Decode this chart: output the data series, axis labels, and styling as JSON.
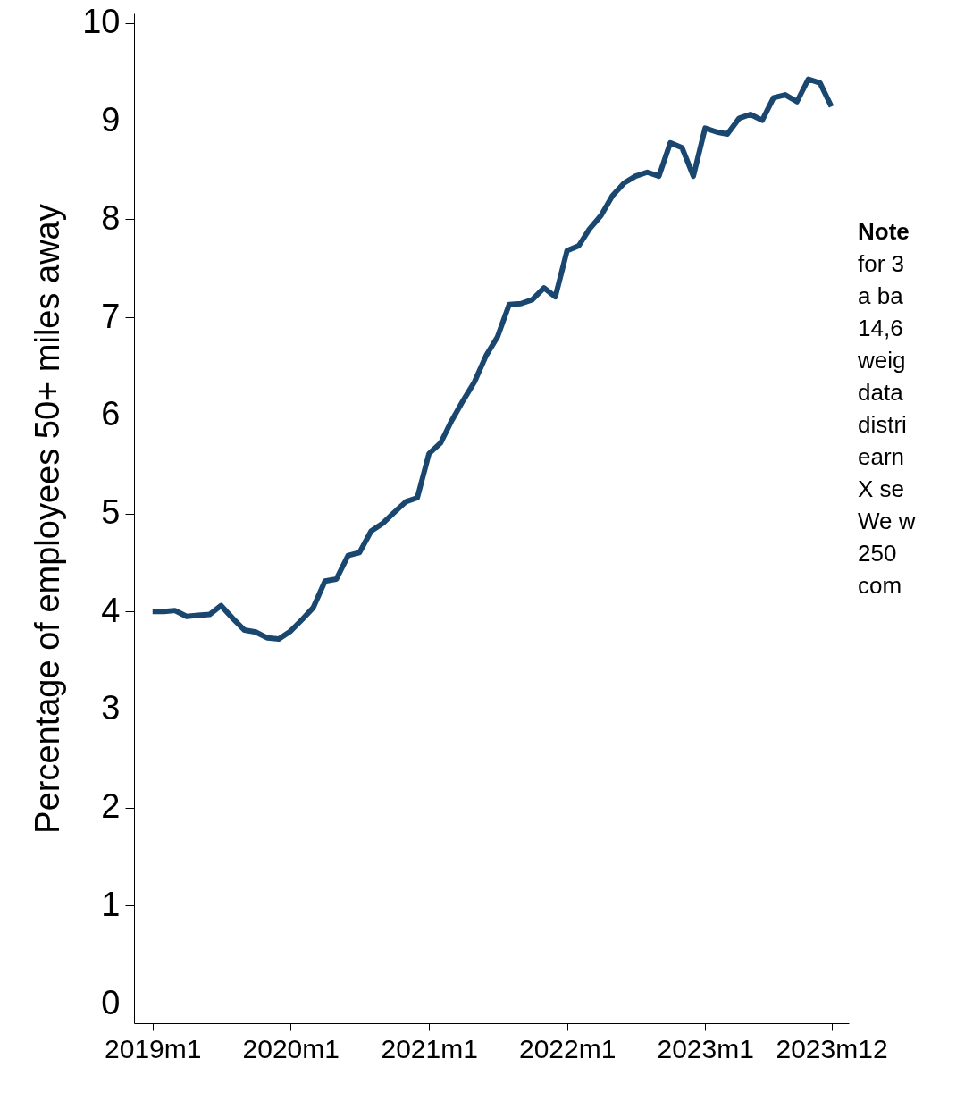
{
  "chart_data": {
    "type": "line",
    "ylabel": "Percentage of employees 50+ miles away",
    "x": [
      "2019-01",
      "2019-02",
      "2019-03",
      "2019-04",
      "2019-05",
      "2019-06",
      "2019-07",
      "2019-08",
      "2019-09",
      "2019-10",
      "2019-11",
      "2019-12",
      "2020-01",
      "2020-02",
      "2020-03",
      "2020-04",
      "2020-05",
      "2020-06",
      "2020-07",
      "2020-08",
      "2020-09",
      "2020-10",
      "2020-11",
      "2020-12",
      "2021-01",
      "2021-02",
      "2021-03",
      "2021-04",
      "2021-05",
      "2021-06",
      "2021-07",
      "2021-08",
      "2021-09",
      "2021-10",
      "2021-11",
      "2021-12",
      "2022-01",
      "2022-02",
      "2022-03",
      "2022-04",
      "2022-05",
      "2022-06",
      "2022-07",
      "2022-08",
      "2022-09",
      "2022-10",
      "2022-11",
      "2022-12",
      "2023-01",
      "2023-02",
      "2023-03",
      "2023-04",
      "2023-05",
      "2023-06",
      "2023-07",
      "2023-08",
      "2023-09",
      "2023-10",
      "2023-11",
      "2023-12"
    ],
    "series": [
      {
        "color": "#1a476f",
        "values": [
          4.0,
          4.0,
          4.01,
          3.95,
          3.96,
          3.97,
          4.06,
          3.93,
          3.81,
          3.79,
          3.73,
          3.72,
          3.8,
          3.92,
          4.04,
          4.31,
          4.33,
          4.57,
          4.6,
          4.82,
          4.9,
          5.01,
          5.12,
          5.16,
          5.61,
          5.72,
          5.94,
          6.15,
          6.34,
          6.61,
          6.8,
          7.13,
          7.14,
          7.18,
          7.3,
          7.21,
          7.68,
          7.73,
          7.9,
          8.04,
          8.24,
          8.37,
          8.44,
          8.48,
          8.44,
          8.78,
          8.73,
          8.44,
          8.93,
          8.89,
          8.87,
          9.03,
          9.07,
          9.01,
          9.24,
          9.27,
          9.2,
          9.43,
          9.39,
          9.15
        ]
      }
    ],
    "xlim": [
      "2018-11-13",
      "2024-01-16"
    ],
    "xticks": [
      {
        "value": "2019-01",
        "label": "2019m1"
      },
      {
        "value": "2020-01",
        "label": "2020m1"
      },
      {
        "value": "2021-01",
        "label": "2021m1"
      },
      {
        "value": "2022-01",
        "label": "2022m1"
      },
      {
        "value": "2023-01",
        "label": "2023m1"
      },
      {
        "value": "2023-12",
        "label": "2023m12"
      }
    ],
    "ylim": [
      -0.2,
      10.1
    ],
    "yticks": [
      0,
      1,
      2,
      3,
      4,
      5,
      6,
      7,
      8,
      9,
      10
    ],
    "grid": false,
    "marker": "none",
    "line_style": "solid",
    "annotations": [
      "Note",
      "for 3",
      "a ba",
      "14,6",
      "weig",
      "data",
      "distri",
      "earn",
      "X se",
      "We w",
      "250",
      "com"
    ]
  }
}
